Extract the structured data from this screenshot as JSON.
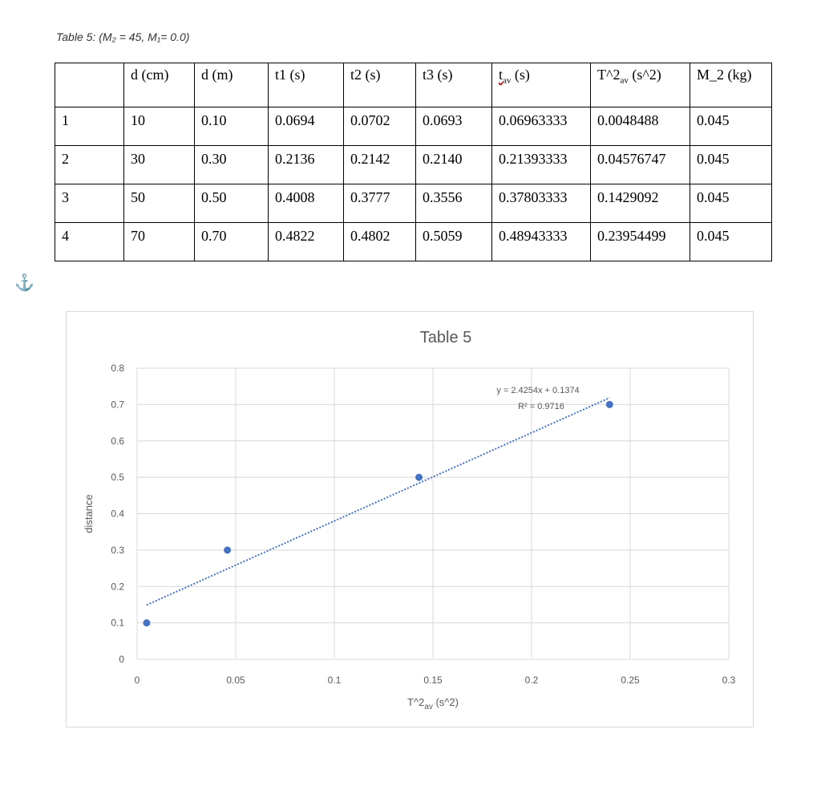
{
  "caption": "Table 5: (M₂ = 45, M₁= 0.0)",
  "table": {
    "headers": [
      "",
      "d (cm)",
      "d (m)",
      "t1 (s)",
      "t2 (s)",
      "t3 (s)",
      "t_av (s)",
      "T^2av (s^2)",
      "M_2 (kg)"
    ],
    "rows": [
      [
        "1",
        "10",
        "0.10",
        "0.0694",
        "0.0702",
        "0.0693",
        "0.06963333",
        "0.0048488",
        "0.045"
      ],
      [
        "2",
        "30",
        "0.30",
        "0.2136",
        "0.2142",
        "0.2140",
        "0.21393333",
        "0.04576747",
        "0.045"
      ],
      [
        "3",
        "50",
        "0.50",
        "0.4008",
        "0.3777",
        "0.3556",
        "0.37803333",
        "0.1429092",
        "0.045"
      ],
      [
        "4",
        "70",
        "0.70",
        "0.4822",
        "0.4802",
        "0.5059",
        "0.48943333",
        "0.23954499",
        "0.045"
      ]
    ]
  },
  "anchor_icon": "anchor-icon",
  "chart_data": {
    "type": "scatter",
    "title": "Table 5",
    "xlabel": "T^2av (s^2)",
    "ylabel": "distance",
    "xlim": [
      0,
      0.3
    ],
    "ylim": [
      0,
      0.8
    ],
    "x_ticks": [
      0,
      0.05,
      0.1,
      0.15,
      0.2,
      0.25,
      0.3
    ],
    "y_ticks": [
      0,
      0.1,
      0.2,
      0.3,
      0.4,
      0.5,
      0.6,
      0.7,
      0.8
    ],
    "grid": true,
    "point_color": "#4472C4",
    "trendline_color": "#4472C4",
    "points": [
      {
        "x": 0.0048488,
        "y": 0.1
      },
      {
        "x": 0.04576747,
        "y": 0.3
      },
      {
        "x": 0.1429092,
        "y": 0.5
      },
      {
        "x": 0.23954499,
        "y": 0.7
      }
    ],
    "trendline": {
      "slope": 2.4254,
      "intercept": 0.1374,
      "x_range": [
        0.0048488,
        0.23954499
      ]
    },
    "equation": "y = 2.4254x + 0.1374",
    "r2": "R² = 0.9716"
  }
}
